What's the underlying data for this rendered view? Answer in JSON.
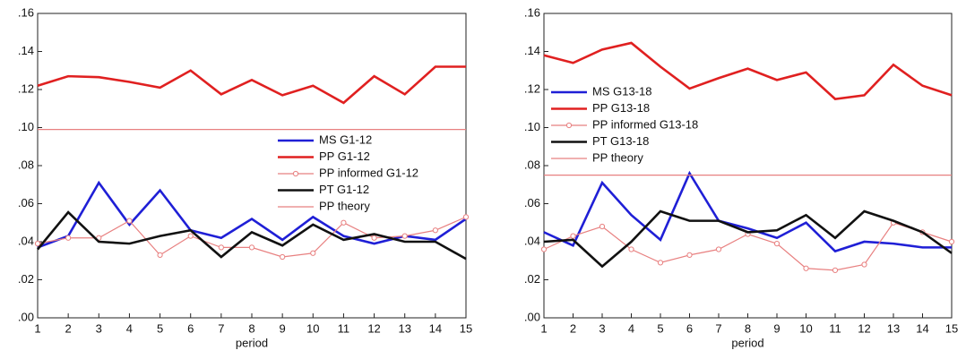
{
  "chart_data": [
    {
      "type": "line",
      "xlabel": "period",
      "x": [
        1,
        2,
        3,
        4,
        5,
        6,
        7,
        8,
        9,
        10,
        11,
        12,
        13,
        14,
        15
      ],
      "xlim": [
        1,
        15
      ],
      "xticks": [
        1,
        2,
        3,
        4,
        5,
        6,
        7,
        8,
        9,
        10,
        11,
        12,
        13,
        14,
        15
      ],
      "ylim": [
        0,
        0.16
      ],
      "yticks": [
        {
          "value": 0,
          "label": ".00"
        },
        {
          "value": 0.02,
          "label": ".02"
        },
        {
          "value": 0.04,
          "label": ".04"
        },
        {
          "value": 0.06,
          "label": ".06"
        },
        {
          "value": 0.08,
          "label": ".08"
        },
        {
          "value": 0.1,
          "label": ".10"
        },
        {
          "value": 0.12,
          "label": ".12"
        },
        {
          "value": 0.14,
          "label": ".14"
        },
        {
          "value": 0.16,
          "label": ".16"
        }
      ],
      "legend": "center right",
      "series": [
        {
          "name": "MS G1-12",
          "color": "#1f1fd6",
          "values": [
            0.037,
            0.043,
            0.071,
            0.049,
            0.067,
            0.046,
            0.042,
            0.052,
            0.041,
            0.053,
            0.043,
            0.039,
            0.043,
            0.041,
            0.052
          ]
        },
        {
          "name": "PP G1-12",
          "color": "#e02020",
          "values": [
            0.122,
            0.127,
            0.1265,
            0.124,
            0.121,
            0.13,
            0.1175,
            0.125,
            0.117,
            0.122,
            0.113,
            0.127,
            0.1175,
            0.132,
            0.132
          ]
        },
        {
          "name": "PP informed G1-12",
          "color": "#e88080",
          "marker": "circle",
          "values": [
            0.039,
            0.042,
            0.042,
            0.051,
            0.033,
            0.043,
            0.037,
            0.037,
            0.032,
            0.034,
            0.05,
            0.042,
            0.043,
            0.046,
            0.053
          ]
        },
        {
          "name": "PT G1-12",
          "color": "#111111",
          "values": [
            0.036,
            0.0555,
            0.04,
            0.039,
            0.043,
            0.046,
            0.032,
            0.045,
            0.038,
            0.049,
            0.041,
            0.044,
            0.04,
            0.04,
            0.031
          ]
        },
        {
          "name": "PP theory",
          "color": "#e88080",
          "thin": true,
          "values": [
            0.099,
            0.099,
            0.099,
            0.099,
            0.099,
            0.099,
            0.099,
            0.099,
            0.099,
            0.099,
            0.099,
            0.099,
            0.099,
            0.099,
            0.099
          ]
        }
      ]
    },
    {
      "type": "line",
      "xlabel": "period",
      "x": [
        1,
        2,
        3,
        4,
        5,
        6,
        7,
        8,
        9,
        10,
        11,
        12,
        13,
        14,
        15
      ],
      "xlim": [
        1,
        15
      ],
      "xticks": [
        1,
        2,
        3,
        4,
        5,
        6,
        7,
        8,
        9,
        10,
        11,
        12,
        13,
        14,
        15
      ],
      "ylim": [
        0,
        0.16
      ],
      "yticks": [
        {
          "value": 0,
          "label": ".00"
        },
        {
          "value": 0.02,
          "label": ".02"
        },
        {
          "value": 0.04,
          "label": ".04"
        },
        {
          "value": 0.06,
          "label": ".06"
        },
        {
          "value": 0.08,
          "label": ".08"
        },
        {
          "value": 0.1,
          "label": ".10"
        },
        {
          "value": 0.12,
          "label": ".12"
        },
        {
          "value": 0.14,
          "label": ".14"
        },
        {
          "value": 0.16,
          "label": ".16"
        }
      ],
      "legend": "upper left",
      "series": [
        {
          "name": "MS G13-18",
          "color": "#1f1fd6",
          "values": [
            0.045,
            0.038,
            0.071,
            0.054,
            0.041,
            0.076,
            0.051,
            0.047,
            0.042,
            0.05,
            0.035,
            0.04,
            0.039,
            0.037,
            0.037
          ]
        },
        {
          "name": "PP G13-18",
          "color": "#e02020",
          "values": [
            0.138,
            0.134,
            0.141,
            0.1445,
            0.132,
            0.1205,
            0.126,
            0.131,
            0.125,
            0.129,
            0.115,
            0.117,
            0.133,
            0.122,
            0.117
          ]
        },
        {
          "name": "PP informed G13-18",
          "color": "#e88080",
          "marker": "circle",
          "values": [
            0.036,
            0.043,
            0.048,
            0.036,
            0.029,
            0.033,
            0.036,
            0.044,
            0.039,
            0.026,
            0.025,
            0.028,
            0.05,
            0.045,
            0.04
          ]
        },
        {
          "name": "PT G13-18",
          "color": "#111111",
          "values": [
            0.04,
            0.041,
            0.027,
            0.04,
            0.056,
            0.051,
            0.051,
            0.045,
            0.046,
            0.054,
            0.042,
            0.056,
            0.051,
            0.045,
            0.034
          ]
        },
        {
          "name": "PP theory",
          "color": "#e88080",
          "thin": true,
          "values": [
            0.075,
            0.075,
            0.075,
            0.075,
            0.075,
            0.075,
            0.075,
            0.075,
            0.075,
            0.075,
            0.075,
            0.075,
            0.075,
            0.075,
            0.075
          ]
        }
      ]
    }
  ]
}
